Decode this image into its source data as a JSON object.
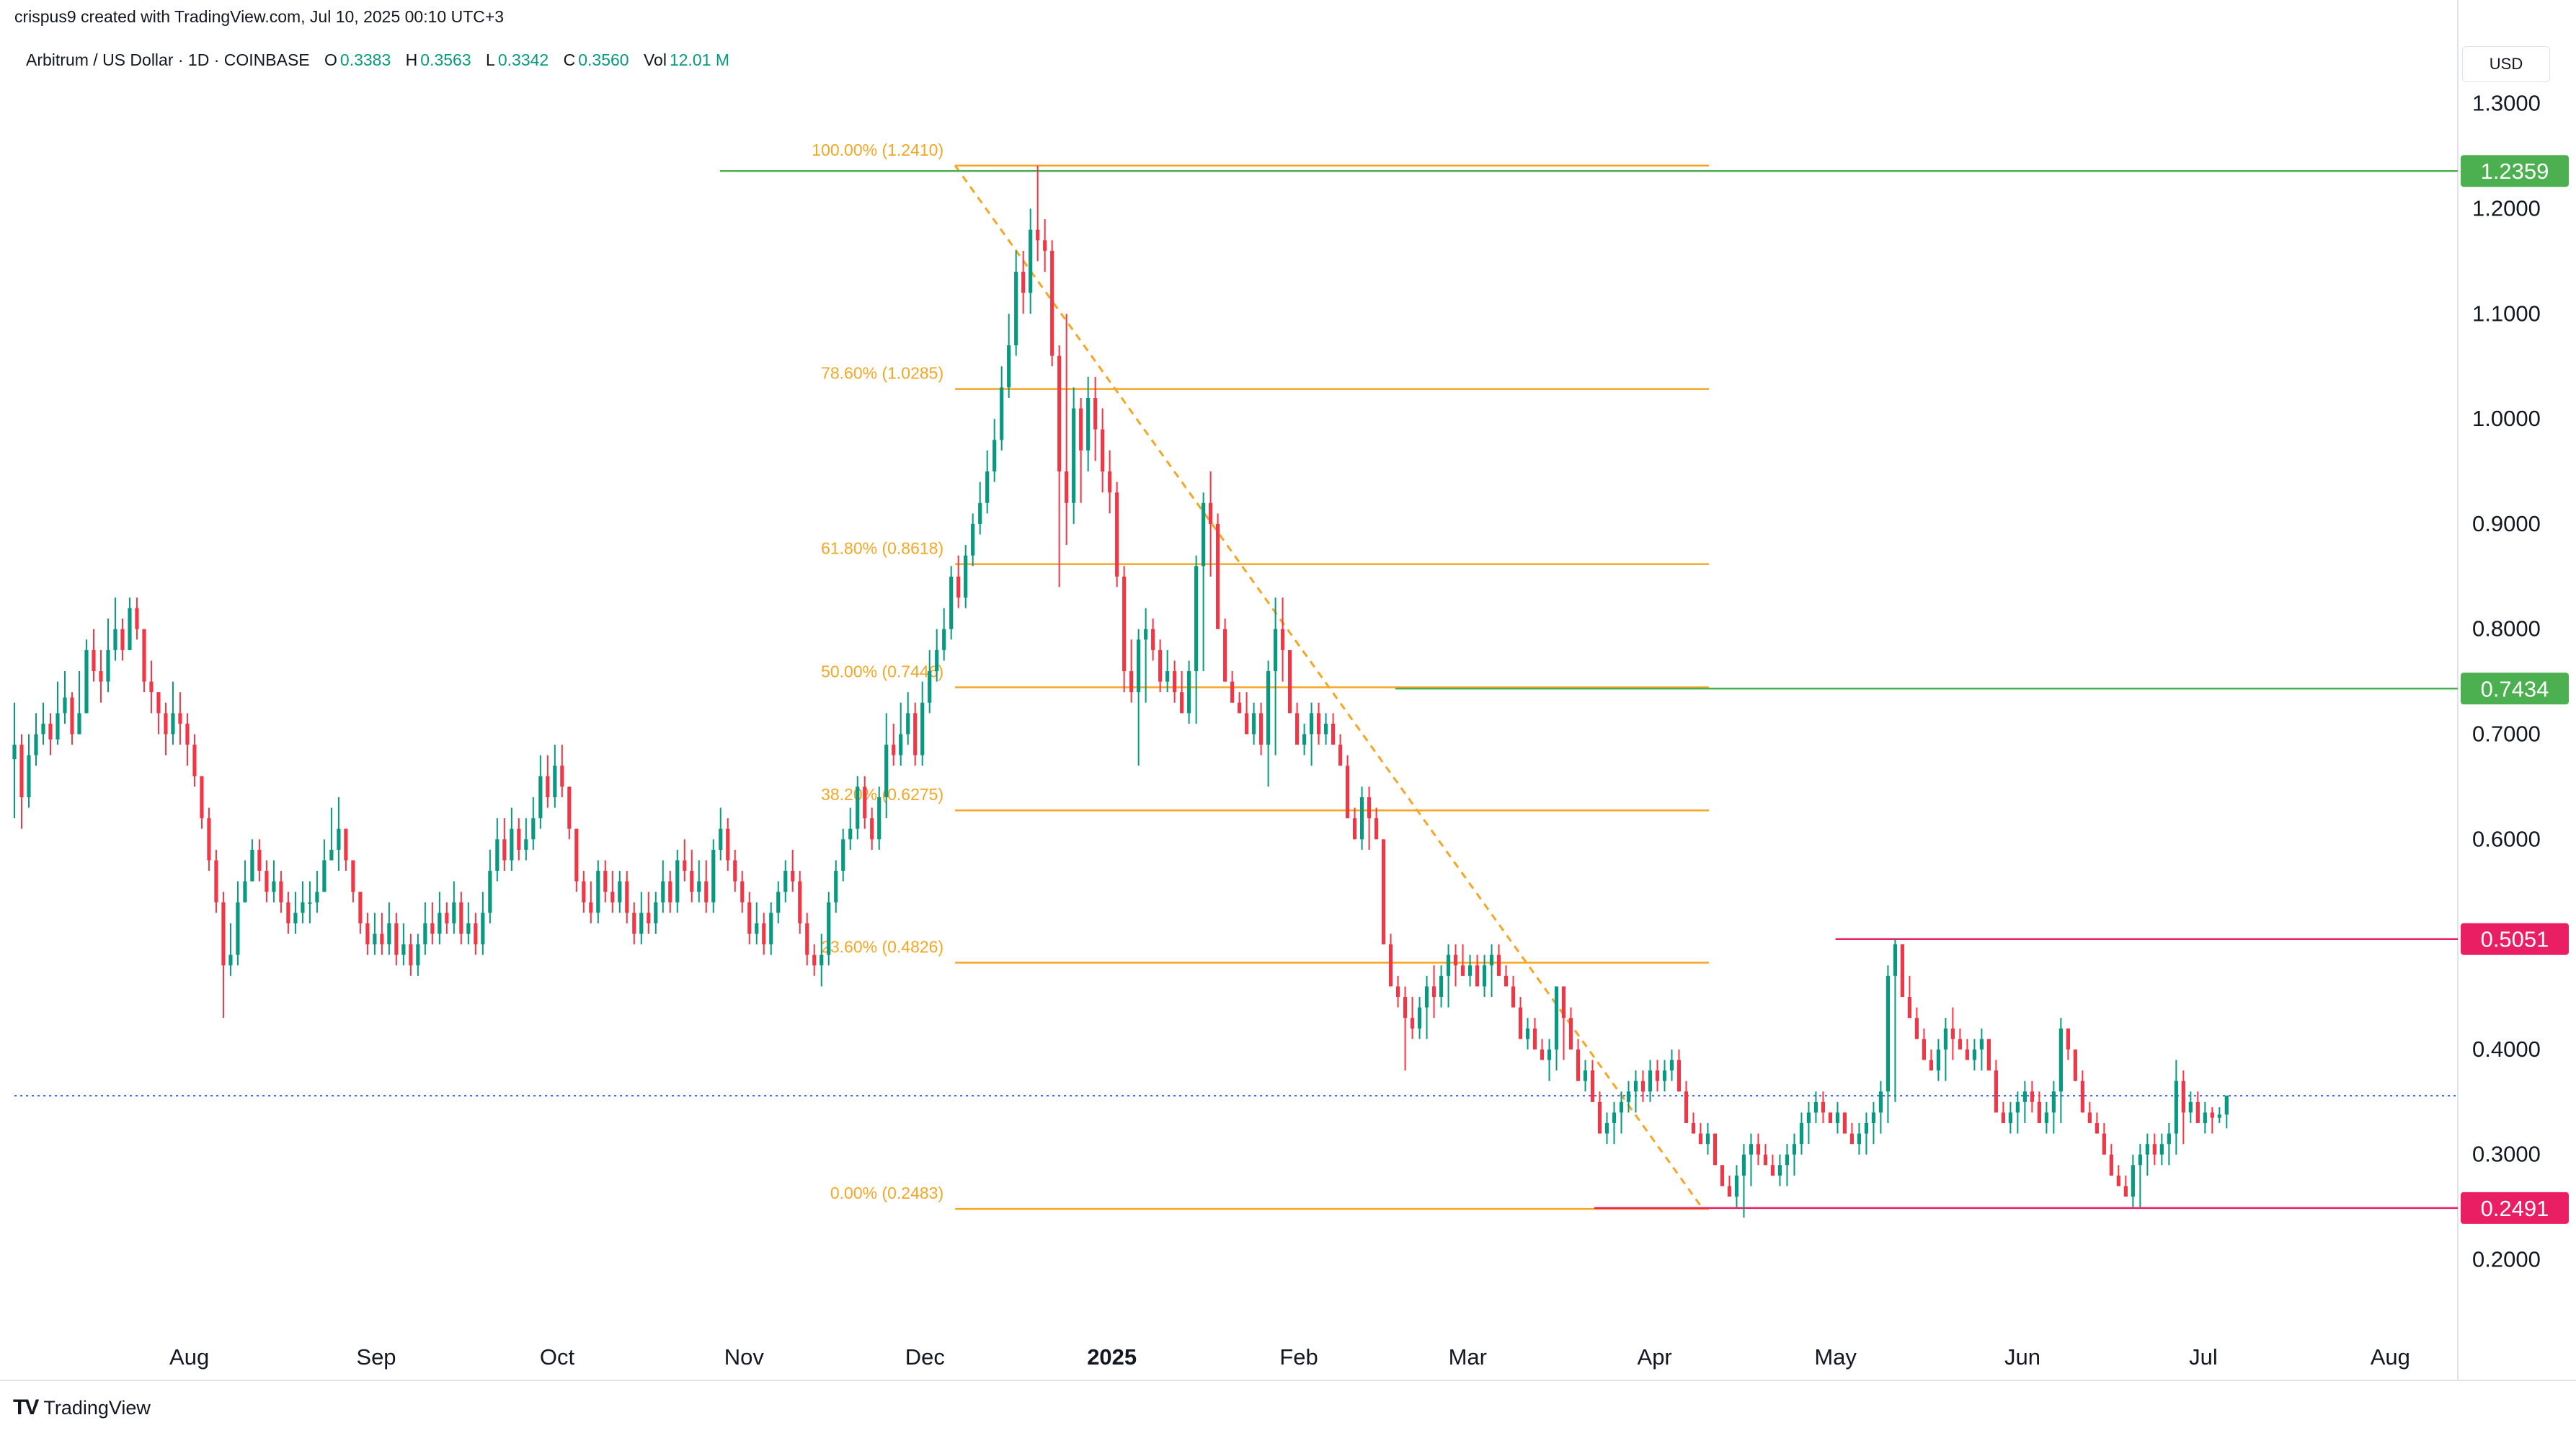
{
  "header": {
    "attribution": "crispus9 created with TradingView.com, Jul 10, 2025 00:10 UTC+3",
    "symbol": "Arbitrum / US Dollar · 1D · COINBASE",
    "o_label": "O",
    "o_value": "0.3383",
    "h_label": "H",
    "h_value": "0.3563",
    "l_label": "L",
    "l_value": "0.3342",
    "c_label": "C",
    "c_value": "0.3560",
    "vol_label": "Vol",
    "vol_value": "12.01 M",
    "currency": "USD"
  },
  "branding": {
    "logo_text": "TradingView",
    "logo_mark": "TV"
  },
  "colors": {
    "up": "#089981",
    "down": "#f23645",
    "fib": "#f5a623",
    "green_marker": "#4caf50",
    "red_marker": "#e91e63",
    "axis_text": "#131722"
  },
  "chart_data": {
    "type": "candlestick",
    "ylim": [
      0.14,
      1.33
    ],
    "y_ticks": [
      "1.3000",
      "1.2000",
      "1.1000",
      "1.0000",
      "0.9000",
      "0.8000",
      "0.7000",
      "0.6000",
      "0.4000",
      "0.3000",
      "0.2000"
    ],
    "y_tick_values": [
      1.3,
      1.2,
      1.1,
      1.0,
      0.9,
      0.8,
      0.7,
      0.6,
      0.4,
      0.3,
      0.2
    ],
    "x_ticks": [
      "Aug",
      "Sep",
      "Oct",
      "Nov",
      "Dec",
      "2025",
      "Feb",
      "Mar",
      "Apr",
      "May",
      "Jun",
      "Jul",
      "Aug"
    ],
    "x_tick_dates": [
      "2024-08-01",
      "2024-09-01",
      "2024-10-01",
      "2024-11-01",
      "2024-12-01",
      "2025-01-01",
      "2025-02-01",
      "2025-03-01",
      "2025-04-01",
      "2025-05-01",
      "2025-06-01",
      "2025-07-01",
      "2025-08-01"
    ],
    "x_range": [
      "2024-07-03",
      "2025-08-11"
    ],
    "price_labels": [
      {
        "text": "1.2359",
        "value": 1.2359,
        "color": "green"
      },
      {
        "text": "0.7434",
        "value": 0.7434,
        "color": "green"
      },
      {
        "text": "0.5051",
        "value": 0.5051,
        "color": "red"
      },
      {
        "text": "0.2491",
        "value": 0.2491,
        "color": "red"
      }
    ],
    "horizontal_lines": [
      {
        "value": 1.2359,
        "from": "2024-10-28",
        "to": "2025-08-11",
        "color": "green"
      },
      {
        "value": 0.7434,
        "from": "2025-02-17",
        "to": "2025-08-11",
        "color": "green"
      },
      {
        "value": 0.5051,
        "from": "2025-05-01",
        "to": "2025-08-11",
        "color": "red"
      },
      {
        "value": 0.2491,
        "from": "2025-03-22",
        "to": "2025-08-11",
        "color": "red"
      }
    ],
    "current_price": 0.356,
    "fib_retracement": {
      "from_date": "2024-12-06",
      "to_date": "2025-04-09",
      "line_end_date": "2025-04-10",
      "high": 1.241,
      "low": 0.2483,
      "levels": [
        {
          "label": "100.00% (1.2410)",
          "value": 1.241
        },
        {
          "label": "78.60% (1.0285)",
          "value": 1.0285
        },
        {
          "label": "61.80% (0.8618)",
          "value": 0.8618
        },
        {
          "label": "50.00% (0.7446)",
          "value": 0.7446
        },
        {
          "label": "38.20% (0.6275)",
          "value": 0.6275
        },
        {
          "label": "23.60% (0.4826)",
          "value": 0.4826
        },
        {
          "label": "0.00% (0.2483)",
          "value": 0.2483
        }
      ]
    },
    "candles_start_date": "2024-07-03",
    "candles_close": [
      0.69,
      0.64,
      0.68,
      0.7,
      0.71,
      0.695,
      0.72,
      0.735,
      0.7,
      0.72,
      0.78,
      0.76,
      0.75,
      0.78,
      0.8,
      0.78,
      0.82,
      0.8,
      0.75,
      0.74,
      0.72,
      0.7,
      0.72,
      0.71,
      0.69,
      0.66,
      0.62,
      0.58,
      0.54,
      0.48,
      0.49,
      0.54,
      0.56,
      0.59,
      0.57,
      0.55,
      0.56,
      0.54,
      0.52,
      0.53,
      0.54,
      0.54,
      0.55,
      0.58,
      0.59,
      0.61,
      0.58,
      0.55,
      0.52,
      0.5,
      0.51,
      0.5,
      0.52,
      0.49,
      0.5,
      0.48,
      0.5,
      0.52,
      0.51,
      0.53,
      0.52,
      0.54,
      0.51,
      0.52,
      0.5,
      0.53,
      0.57,
      0.6,
      0.58,
      0.61,
      0.59,
      0.6,
      0.62,
      0.66,
      0.64,
      0.67,
      0.65,
      0.61,
      0.56,
      0.54,
      0.53,
      0.57,
      0.55,
      0.54,
      0.56,
      0.53,
      0.51,
      0.53,
      0.52,
      0.54,
      0.56,
      0.54,
      0.58,
      0.57,
      0.55,
      0.56,
      0.54,
      0.59,
      0.61,
      0.58,
      0.56,
      0.54,
      0.51,
      0.52,
      0.5,
      0.53,
      0.55,
      0.57,
      0.56,
      0.52,
      0.49,
      0.48,
      0.49,
      0.54,
      0.57,
      0.6,
      0.61,
      0.65,
      0.62,
      0.6,
      0.64,
      0.69,
      0.68,
      0.7,
      0.72,
      0.68,
      0.73,
      0.76,
      0.78,
      0.8,
      0.85,
      0.83,
      0.87,
      0.9,
      0.92,
      0.95,
      0.98,
      1.03,
      1.07,
      1.14,
      1.12,
      1.18,
      1.17,
      1.16,
      1.06,
      0.95,
      0.92,
      1.01,
      0.97,
      1.02,
      0.99,
      0.95,
      0.93,
      0.85,
      0.76,
      0.74,
      0.79,
      0.8,
      0.78,
      0.75,
      0.76,
      0.74,
      0.72,
      0.76,
      0.86,
      0.92,
      0.9,
      0.8,
      0.75,
      0.73,
      0.72,
      0.7,
      0.72,
      0.69,
      0.76,
      0.8,
      0.78,
      0.72,
      0.69,
      0.7,
      0.72,
      0.7,
      0.71,
      0.69,
      0.67,
      0.62,
      0.6,
      0.64,
      0.62,
      0.6,
      0.5,
      0.46,
      0.45,
      0.43,
      0.42,
      0.44,
      0.46,
      0.45,
      0.47,
      0.49,
      0.48,
      0.47,
      0.48,
      0.46,
      0.48,
      0.49,
      0.47,
      0.46,
      0.44,
      0.41,
      0.42,
      0.4,
      0.39,
      0.4,
      0.46,
      0.43,
      0.4,
      0.37,
      0.38,
      0.35,
      0.32,
      0.33,
      0.34,
      0.35,
      0.36,
      0.37,
      0.36,
      0.38,
      0.37,
      0.38,
      0.39,
      0.36,
      0.33,
      0.32,
      0.31,
      0.32,
      0.29,
      0.27,
      0.26,
      0.28,
      0.3,
      0.31,
      0.3,
      0.29,
      0.28,
      0.29,
      0.3,
      0.31,
      0.33,
      0.34,
      0.35,
      0.34,
      0.33,
      0.34,
      0.32,
      0.31,
      0.32,
      0.33,
      0.34,
      0.36,
      0.47,
      0.5,
      0.45,
      0.43,
      0.41,
      0.39,
      0.38,
      0.4,
      0.42,
      0.41,
      0.4,
      0.39,
      0.4,
      0.41,
      0.38,
      0.34,
      0.33,
      0.34,
      0.35,
      0.36,
      0.35,
      0.33,
      0.34,
      0.36,
      0.42,
      0.4,
      0.37,
      0.34,
      0.33,
      0.32,
      0.3,
      0.28,
      0.27,
      0.26,
      0.29,
      0.3,
      0.31,
      0.3,
      0.31,
      0.32,
      0.37,
      0.34,
      0.35,
      0.33,
      0.34,
      0.335,
      0.338,
      0.356
    ],
    "candles_high": [
      0.73,
      0.7,
      0.7,
      0.72,
      0.73,
      0.72,
      0.75,
      0.76,
      0.74,
      0.76,
      0.79,
      0.8,
      0.78,
      0.81,
      0.83,
      0.81,
      0.83,
      0.83,
      0.79,
      0.77,
      0.74,
      0.73,
      0.75,
      0.74,
      0.72,
      0.7,
      0.66,
      0.63,
      0.59,
      0.55,
      0.52,
      0.56,
      0.58,
      0.6,
      0.6,
      0.58,
      0.58,
      0.57,
      0.55,
      0.55,
      0.56,
      0.56,
      0.57,
      0.6,
      0.63,
      0.64,
      0.61,
      0.58,
      0.55,
      0.53,
      0.53,
      0.53,
      0.54,
      0.53,
      0.52,
      0.51,
      0.51,
      0.54,
      0.54,
      0.55,
      0.54,
      0.56,
      0.55,
      0.54,
      0.53,
      0.55,
      0.59,
      0.62,
      0.62,
      0.63,
      0.62,
      0.62,
      0.64,
      0.68,
      0.68,
      0.69,
      0.69,
      0.65,
      0.61,
      0.57,
      0.56,
      0.58,
      0.58,
      0.57,
      0.57,
      0.57,
      0.54,
      0.55,
      0.55,
      0.55,
      0.58,
      0.57,
      0.59,
      0.6,
      0.59,
      0.58,
      0.58,
      0.6,
      0.63,
      0.62,
      0.59,
      0.57,
      0.55,
      0.54,
      0.53,
      0.54,
      0.56,
      0.58,
      0.59,
      0.57,
      0.53,
      0.5,
      0.51,
      0.55,
      0.58,
      0.61,
      0.63,
      0.66,
      0.66,
      0.63,
      0.65,
      0.72,
      0.71,
      0.73,
      0.74,
      0.73,
      0.75,
      0.78,
      0.8,
      0.82,
      0.86,
      0.87,
      0.88,
      0.91,
      0.94,
      0.97,
      1.0,
      1.05,
      1.1,
      1.16,
      1.16,
      1.2,
      1.241,
      1.19,
      1.17,
      1.07,
      1.1,
      1.03,
      1.02,
      1.04,
      1.04,
      1.01,
      0.97,
      0.94,
      0.86,
      0.79,
      0.8,
      0.82,
      0.81,
      0.79,
      0.78,
      0.77,
      0.76,
      0.77,
      0.87,
      0.93,
      0.95,
      0.91,
      0.81,
      0.76,
      0.74,
      0.74,
      0.73,
      0.73,
      0.77,
      0.83,
      0.83,
      0.78,
      0.73,
      0.71,
      0.73,
      0.73,
      0.72,
      0.72,
      0.7,
      0.68,
      0.63,
      0.65,
      0.65,
      0.63,
      0.6,
      0.51,
      0.47,
      0.46,
      0.45,
      0.45,
      0.47,
      0.48,
      0.48,
      0.5,
      0.5,
      0.5,
      0.49,
      0.49,
      0.49,
      0.5,
      0.5,
      0.48,
      0.47,
      0.45,
      0.43,
      0.43,
      0.41,
      0.41,
      0.46,
      0.46,
      0.44,
      0.41,
      0.39,
      0.39,
      0.36,
      0.34,
      0.35,
      0.36,
      0.37,
      0.38,
      0.38,
      0.39,
      0.39,
      0.39,
      0.4,
      0.4,
      0.37,
      0.34,
      0.33,
      0.33,
      0.32,
      0.29,
      0.28,
      0.29,
      0.31,
      0.32,
      0.32,
      0.31,
      0.3,
      0.3,
      0.31,
      0.32,
      0.34,
      0.35,
      0.36,
      0.36,
      0.34,
      0.35,
      0.34,
      0.33,
      0.33,
      0.34,
      0.35,
      0.37,
      0.48,
      0.505,
      0.5,
      0.47,
      0.44,
      0.42,
      0.4,
      0.41,
      0.43,
      0.44,
      0.42,
      0.41,
      0.41,
      0.42,
      0.41,
      0.39,
      0.35,
      0.35,
      0.36,
      0.37,
      0.37,
      0.36,
      0.35,
      0.37,
      0.43,
      0.42,
      0.4,
      0.38,
      0.35,
      0.34,
      0.33,
      0.31,
      0.29,
      0.28,
      0.3,
      0.31,
      0.32,
      0.32,
      0.32,
      0.33,
      0.39,
      0.38,
      0.36,
      0.36,
      0.35,
      0.345,
      0.345,
      0.3563
    ],
    "candles_low": [
      0.62,
      0.61,
      0.63,
      0.67,
      0.69,
      0.68,
      0.69,
      0.71,
      0.69,
      0.7,
      0.72,
      0.75,
      0.73,
      0.74,
      0.77,
      0.77,
      0.78,
      0.79,
      0.74,
      0.72,
      0.7,
      0.68,
      0.69,
      0.69,
      0.67,
      0.65,
      0.61,
      0.57,
      0.53,
      0.43,
      0.47,
      0.48,
      0.54,
      0.56,
      0.56,
      0.54,
      0.54,
      0.53,
      0.51,
      0.51,
      0.52,
      0.52,
      0.53,
      0.55,
      0.58,
      0.57,
      0.57,
      0.54,
      0.51,
      0.49,
      0.49,
      0.49,
      0.49,
      0.48,
      0.48,
      0.47,
      0.47,
      0.49,
      0.5,
      0.5,
      0.51,
      0.51,
      0.5,
      0.5,
      0.49,
      0.49,
      0.52,
      0.56,
      0.57,
      0.57,
      0.58,
      0.58,
      0.59,
      0.61,
      0.63,
      0.63,
      0.64,
      0.6,
      0.55,
      0.53,
      0.52,
      0.52,
      0.54,
      0.53,
      0.53,
      0.52,
      0.5,
      0.5,
      0.51,
      0.51,
      0.53,
      0.53,
      0.53,
      0.56,
      0.54,
      0.54,
      0.53,
      0.53,
      0.58,
      0.57,
      0.55,
      0.53,
      0.5,
      0.5,
      0.49,
      0.49,
      0.52,
      0.54,
      0.55,
      0.51,
      0.48,
      0.47,
      0.46,
      0.48,
      0.53,
      0.56,
      0.59,
      0.6,
      0.61,
      0.59,
      0.59,
      0.62,
      0.67,
      0.67,
      0.69,
      0.67,
      0.67,
      0.72,
      0.75,
      0.77,
      0.79,
      0.82,
      0.82,
      0.86,
      0.89,
      0.91,
      0.94,
      0.97,
      1.02,
      1.06,
      1.1,
      1.1,
      1.15,
      1.14,
      1.05,
      0.84,
      0.88,
      0.9,
      0.92,
      0.95,
      0.96,
      0.93,
      0.91,
      0.84,
      0.74,
      0.73,
      0.67,
      0.73,
      0.77,
      0.74,
      0.74,
      0.73,
      0.72,
      0.71,
      0.71,
      0.76,
      0.85,
      0.88,
      0.79,
      0.73,
      0.72,
      0.7,
      0.69,
      0.68,
      0.65,
      0.68,
      0.75,
      0.77,
      0.71,
      0.68,
      0.67,
      0.69,
      0.69,
      0.69,
      0.68,
      0.66,
      0.61,
      0.59,
      0.59,
      0.61,
      0.59,
      0.49,
      0.44,
      0.38,
      0.41,
      0.41,
      0.41,
      0.43,
      0.44,
      0.44,
      0.46,
      0.47,
      0.46,
      0.46,
      0.45,
      0.45,
      0.47,
      0.46,
      0.45,
      0.43,
      0.4,
      0.4,
      0.39,
      0.37,
      0.38,
      0.39,
      0.42,
      0.39,
      0.36,
      0.35,
      0.34,
      0.31,
      0.31,
      0.32,
      0.34,
      0.34,
      0.35,
      0.35,
      0.36,
      0.36,
      0.37,
      0.37,
      0.35,
      0.32,
      0.31,
      0.3,
      0.29,
      0.28,
      0.26,
      0.25,
      0.24,
      0.27,
      0.29,
      0.29,
      0.28,
      0.27,
      0.27,
      0.28,
      0.3,
      0.31,
      0.33,
      0.33,
      0.33,
      0.32,
      0.32,
      0.31,
      0.3,
      0.3,
      0.31,
      0.32,
      0.33,
      0.35,
      0.46,
      0.44,
      0.42,
      0.4,
      0.38,
      0.37,
      0.37,
      0.39,
      0.4,
      0.39,
      0.38,
      0.38,
      0.39,
      0.37,
      0.33,
      0.32,
      0.32,
      0.33,
      0.34,
      0.34,
      0.32,
      0.32,
      0.33,
      0.39,
      0.38,
      0.36,
      0.33,
      0.32,
      0.31,
      0.29,
      0.27,
      0.26,
      0.25,
      0.25,
      0.28,
      0.29,
      0.29,
      0.29,
      0.3,
      0.31,
      0.33,
      0.33,
      0.32,
      0.32,
      0.33,
      0.325,
      0.33,
      0.3342
    ]
  }
}
